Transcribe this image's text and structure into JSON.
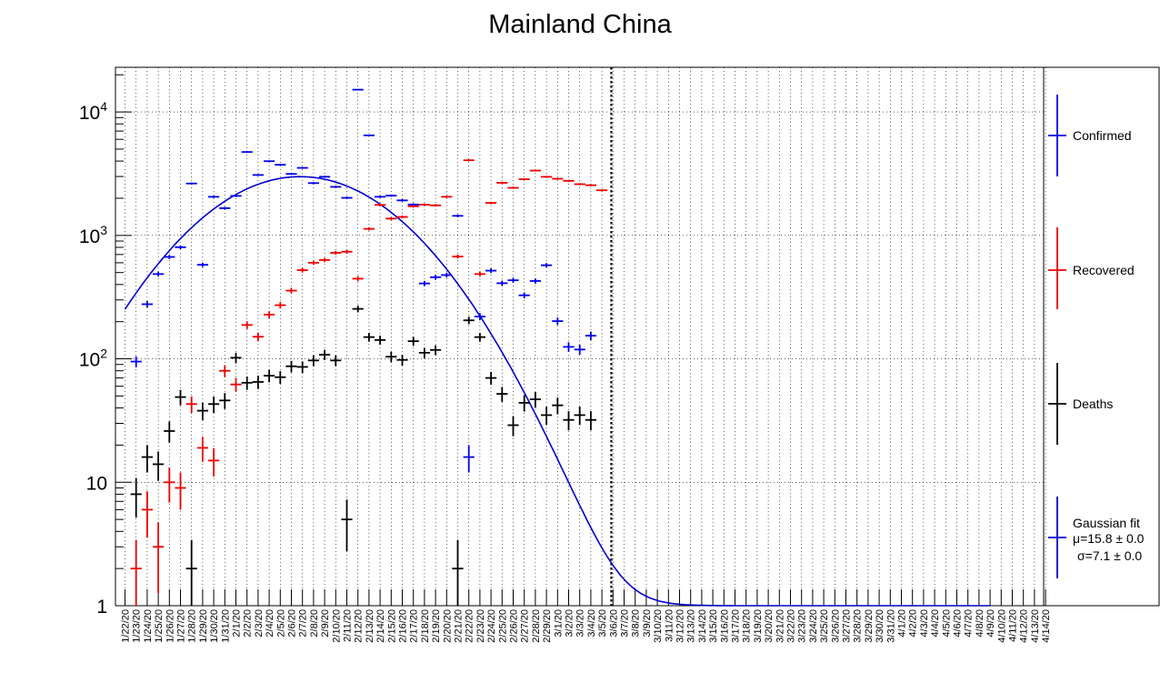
{
  "chart_data": {
    "type": "scatter",
    "title": "Mainland China",
    "xlabel": "",
    "ylabel": "",
    "y_scale": "log",
    "ylim": [
      1,
      23000
    ],
    "grid": true,
    "legend_position": "right",
    "y_tick_labels": [
      {
        "value": 1,
        "label": "1"
      },
      {
        "value": 10,
        "label": "10"
      },
      {
        "value": 100,
        "label": "10",
        "exp": "2"
      },
      {
        "value": 1000,
        "label": "10",
        "exp": "3"
      },
      {
        "value": 10000,
        "label": "10",
        "exp": "4"
      }
    ],
    "categories": [
      "1/22/20",
      "1/23/20",
      "1/24/20",
      "1/25/20",
      "1/26/20",
      "1/27/20",
      "1/28/20",
      "1/29/20",
      "1/30/20",
      "1/31/20",
      "2/1/20",
      "2/2/20",
      "2/3/20",
      "2/4/20",
      "2/5/20",
      "2/6/20",
      "2/7/20",
      "2/8/20",
      "2/9/20",
      "2/10/20",
      "2/11/20",
      "2/12/20",
      "2/13/20",
      "2/14/20",
      "2/15/20",
      "2/16/20",
      "2/17/20",
      "2/18/20",
      "2/19/20",
      "2/20/20",
      "2/21/20",
      "2/22/20",
      "2/23/20",
      "2/24/20",
      "2/25/20",
      "2/26/20",
      "2/27/20",
      "2/28/20",
      "2/29/20",
      "3/1/20",
      "3/2/20",
      "3/3/20",
      "3/4/20",
      "3/5/20",
      "3/6/20",
      "3/7/20",
      "3/8/20",
      "3/9/20",
      "3/10/20",
      "3/11/20",
      "3/12/20",
      "3/13/20",
      "3/14/20",
      "3/15/20",
      "3/16/20",
      "3/17/20",
      "3/18/20",
      "3/19/20",
      "3/20/20",
      "3/21/20",
      "3/22/20",
      "3/23/20",
      "3/24/20",
      "3/25/20",
      "3/26/20",
      "3/27/20",
      "3/28/20",
      "3/29/20",
      "3/30/20",
      "3/31/20",
      "4/1/20",
      "4/2/20",
      "4/3/20",
      "4/4/20",
      "4/5/20",
      "4/6/20",
      "4/7/20",
      "4/8/20",
      "4/9/20",
      "4/10/20",
      "4/11/20",
      "4/12/20",
      "4/13/20",
      "4/14/20"
    ],
    "current_day_marker": "3/6/20",
    "series": [
      {
        "name": "Confirmed",
        "color": "#0000ee",
        "start_index": 1,
        "values": [
          95,
          277,
          486,
          669,
          802,
          2632,
          578,
          2054,
          1661,
          2089,
          4739,
          3086,
          3991,
          3733,
          3147,
          3523,
          2652,
          2984,
          2473,
          2015,
          15152,
          6463,
          2055,
          2100,
          1921,
          1777,
          408,
          458,
          477,
          1440,
          16,
          220,
          518,
          410,
          433,
          327,
          427,
          573,
          202,
          125,
          119,
          154
        ]
      },
      {
        "name": "Recovered",
        "color": "#ee0000",
        "start_index": 1,
        "values": [
          2,
          6,
          3,
          10,
          9,
          43,
          19,
          15,
          80,
          62,
          188,
          151,
          228,
          272,
          357,
          523,
          600,
          632,
          722,
          737,
          446,
          1130,
          1766,
          1368,
          1411,
          1721,
          1773,
          1751,
          2054,
          674,
          4062,
          486,
          1832,
          2666,
          2430,
          2850,
          3350,
          2982,
          2876,
          2768,
          2600,
          2550,
          2320
        ]
      },
      {
        "name": "Deaths",
        "color": "#000000",
        "start_index": 1,
        "values": [
          8,
          16,
          14,
          26,
          49,
          2,
          38,
          43,
          46,
          102,
          64,
          65,
          73,
          71,
          87,
          86,
          97,
          108,
          97,
          5,
          254,
          150,
          142,
          104,
          98,
          139,
          112,
          118,
          null,
          2,
          205,
          150,
          70,
          52,
          29,
          44,
          47,
          35,
          42,
          32,
          35,
          32
        ]
      }
    ],
    "fit": {
      "name": "Gaussian fit",
      "mu": "μ=15.8 ± 0.0",
      "sigma": "σ=7.1 ± 0.0",
      "color": "#0000cc",
      "mean_index": 15.8,
      "sigma_days": 7.1,
      "amplitude": 2990,
      "offset": 1
    }
  }
}
